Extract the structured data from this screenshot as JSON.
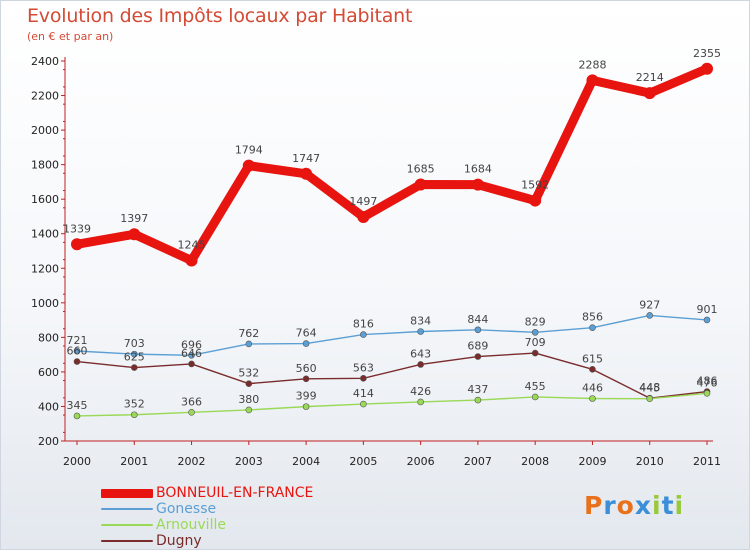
{
  "chart_data": {
    "type": "line",
    "title": "Evolution des Impôts locaux par Habitant",
    "subtitle": "(en € et par an)",
    "x": [
      "2000",
      "2001",
      "2002",
      "2003",
      "2004",
      "2005",
      "2006",
      "2007",
      "2008",
      "2009",
      "2010",
      "2011"
    ],
    "ylim": [
      200,
      2400
    ],
    "yticks": [
      200,
      400,
      600,
      800,
      1000,
      1200,
      1400,
      1600,
      1800,
      2000,
      2200,
      2400
    ],
    "grid": false,
    "legend_position": "bottom-left",
    "series": [
      {
        "name": "BONNEUIL-EN-FRANCE",
        "color": "#e8140f",
        "values": [
          1339,
          1397,
          1245,
          1794,
          1747,
          1497,
          1685,
          1684,
          1592,
          2288,
          2214,
          2355
        ],
        "labels": [
          "1339",
          "1397",
          "1245",
          "1794",
          "1747",
          "1497",
          "1685",
          "1684",
          "1592",
          "2288",
          "2214",
          "2355"
        ]
      },
      {
        "name": "Gonesse",
        "color": "#5b9fd4",
        "values": [
          721,
          703,
          696,
          762,
          764,
          816,
          834,
          844,
          829,
          856,
          927,
          901
        ],
        "labels": [
          "721",
          "703",
          "696",
          "762",
          "764",
          "816",
          "834",
          "844",
          "829",
          "856",
          "927",
          "901"
        ]
      },
      {
        "name": "Arnouville",
        "color": "#9ad957",
        "values": [
          345,
          352,
          366,
          380,
          399,
          414,
          426,
          437,
          455,
          446,
          445,
          476
        ],
        "labels": [
          "345",
          "352",
          "366",
          "380",
          "399",
          "414",
          "426",
          "437",
          "455",
          "446",
          "445",
          "476"
        ]
      },
      {
        "name": "Dugny",
        "color": "#7a2b2b",
        "values": [
          660,
          625,
          646,
          532,
          560,
          563,
          643,
          689,
          709,
          615,
          448,
          486
        ],
        "labels": [
          "660",
          "625",
          "646",
          "532",
          "560",
          "563",
          "643",
          "689",
          "709",
          "615",
          "448",
          "486"
        ]
      }
    ]
  },
  "brand": {
    "name": "Proxiti",
    "letters": [
      "P",
      "r",
      "o",
      "x",
      "i",
      "t",
      "i"
    ],
    "colors": [
      "#e8721c",
      "#3a8fd8",
      "#e8721c",
      "#3a8fd8",
      "#98c93c",
      "#3a8fd8",
      "#98c93c"
    ]
  }
}
